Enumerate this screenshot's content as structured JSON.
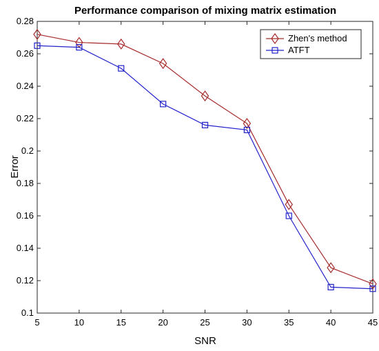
{
  "chart_data": {
    "type": "line",
    "title": "Performance comparison of mixing matrix estimation",
    "xlabel": "SNR",
    "ylabel": "Error",
    "x": [
      5,
      10,
      15,
      20,
      25,
      30,
      35,
      40,
      45
    ],
    "xlim": [
      5,
      45
    ],
    "ylim": [
      0.1,
      0.28
    ],
    "xticks": [
      "5",
      "10",
      "15",
      "20",
      "25",
      "30",
      "35",
      "40",
      "45"
    ],
    "yticks": [
      "0.1",
      "0.12",
      "0.14",
      "0.16",
      "0.18",
      "0.2",
      "0.22",
      "0.24",
      "0.26",
      "0.28"
    ],
    "grid": false,
    "legend_position": "top-right",
    "series": [
      {
        "name": "Zhen's method",
        "color": "#a52a2a",
        "marker": "diamond",
        "values": [
          0.272,
          0.267,
          0.266,
          0.254,
          0.234,
          0.217,
          0.167,
          0.128,
          0.118
        ]
      },
      {
        "name": "ATFT",
        "color": "#2222cc",
        "marker": "square",
        "values": [
          0.265,
          0.264,
          0.251,
          0.229,
          0.216,
          0.213,
          0.16,
          0.116,
          0.115
        ]
      }
    ]
  }
}
